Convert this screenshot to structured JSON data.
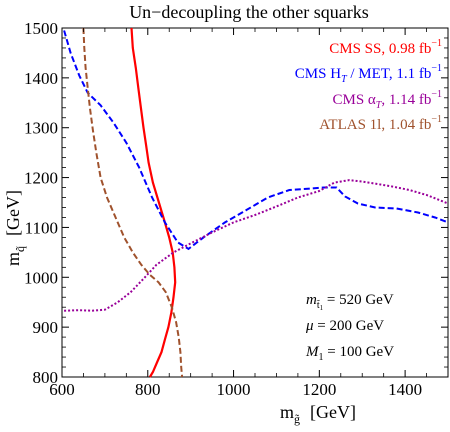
{
  "chart_data": {
    "type": "line",
    "title": "Un−decoupling the other squarks",
    "xlabel": "m",
    "xlabel_sub": "g̃",
    "xlabel_unit": "[GeV]",
    "ylabel": "m",
    "ylabel_sub": "q̃",
    "ylabel_unit": "[GeV]",
    "xlim": [
      600,
      1500
    ],
    "ylim": [
      800,
      1500
    ],
    "xticks": [
      600,
      800,
      1000,
      1200,
      1400
    ],
    "yticks": [
      800,
      900,
      1000,
      1100,
      1200,
      1300,
      1400,
      1500
    ],
    "grid": false,
    "legend_position": "top-right",
    "series": [
      {
        "name": "CMS SS,  0.98 fb",
        "name_sup": "−1",
        "color": "#ff0000",
        "style": "solid",
        "x": [
          762,
          765,
          772,
          778,
          784,
          790,
          796,
          802,
          812,
          826,
          840,
          850,
          858,
          862,
          864,
          860,
          855,
          848,
          840,
          832,
          822,
          812,
          805
        ],
        "y": [
          1500,
          1460,
          1420,
          1380,
          1340,
          1300,
          1265,
          1230,
          1190,
          1150,
          1110,
          1080,
          1050,
          1020,
          990,
          960,
          930,
          900,
          875,
          850,
          830,
          810,
          800
        ]
      },
      {
        "name": "CMS H",
        "name_sub": "T",
        "name_rest": " / MET,  1.1 fb",
        "name_sup": "−1",
        "color": "#0000ff",
        "style": "dashed",
        "x": [
          605,
          620,
          640,
          660,
          690,
          720,
          750,
          780,
          810,
          840,
          870,
          895,
          930,
          980,
          1030,
          1080,
          1130,
          1180,
          1210,
          1240,
          1260,
          1290,
          1330,
          1380,
          1430,
          1470,
          1500
        ],
        "y": [
          1495,
          1450,
          1405,
          1370,
          1345,
          1310,
          1270,
          1220,
          1160,
          1110,
          1070,
          1057,
          1080,
          1110,
          1135,
          1160,
          1175,
          1178,
          1180,
          1180,
          1162,
          1148,
          1140,
          1138,
          1130,
          1120,
          1110
        ]
      },
      {
        "name": "CMS α",
        "name_sub": "T",
        "name_rest": ",  1.14 fb",
        "name_sup": "−1",
        "color": "#990099",
        "style": "dotted",
        "x": [
          605,
          640,
          670,
          700,
          730,
          760,
          790,
          820,
          860,
          900,
          950,
          1000,
          1050,
          1100,
          1150,
          1200,
          1235,
          1270,
          1300,
          1330,
          1370,
          1410,
          1450,
          1480,
          1500
        ],
        "y": [
          933,
          934,
          933,
          935,
          950,
          970,
          997,
          1025,
          1050,
          1068,
          1090,
          1110,
          1125,
          1142,
          1160,
          1173,
          1190,
          1195,
          1192,
          1188,
          1182,
          1175,
          1165,
          1155,
          1148
        ]
      },
      {
        "name": "ATLAS 1l,  1.04 fb",
        "name_sup": "−1",
        "color": "#a0522d",
        "style": "dashed",
        "x": [
          650,
          652,
          655,
          660,
          665,
          672,
          680,
          690,
          705,
          725,
          745,
          765,
          785,
          805,
          825,
          842,
          856,
          866,
          872,
          876,
          878,
          880
        ],
        "y": [
          1500,
          1460,
          1420,
          1380,
          1340,
          1295,
          1250,
          1200,
          1160,
          1120,
          1080,
          1050,
          1025,
          1005,
          990,
          970,
          940,
          910,
          880,
          850,
          820,
          800
        ]
      }
    ],
    "annotations": [
      {
        "label": "m",
        "sub": "t̃",
        "subsub": "1",
        "value": " =  520 GeV"
      },
      {
        "label": "μ",
        "value": " =  200 GeV"
      },
      {
        "label": "M",
        "sub": "1",
        "value": " =  100 GeV"
      }
    ]
  }
}
